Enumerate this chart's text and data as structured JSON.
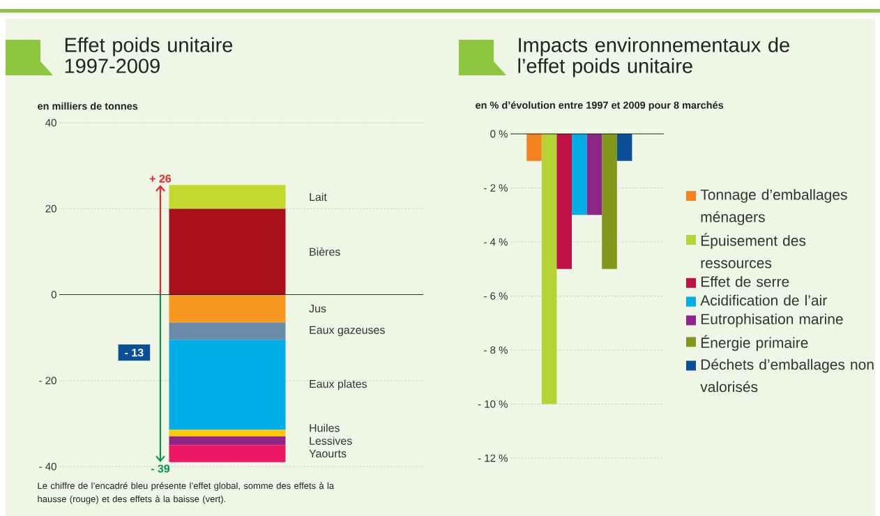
{
  "chart_data": [
    {
      "type": "bar",
      "title": "Effet poids unitaire 1997-2009",
      "ylabel": "en milliers de tonnes",
      "categories": [
        null
      ],
      "stacked": true,
      "legend": false,
      "grid": "y",
      "ylim": [
        -40,
        40
      ],
      "yticks": [
        40,
        20,
        0,
        {
          "value": -20,
          "label": "- 20"
        },
        {
          "value": -40,
          "label": "- 40"
        }
      ],
      "series": [
        {
          "name": "Bières",
          "color": "#a8101b",
          "values": [
            20
          ]
        },
        {
          "name": "Lait",
          "color": "#c2d92e",
          "values": [
            5.5
          ]
        },
        {
          "name": "Jus",
          "color": "#f7991f",
          "values": [
            -6.5
          ]
        },
        {
          "name": "Eaux gazeuses",
          "color": "#6a8ba8",
          "values": [
            -4
          ]
        },
        {
          "name": "Eaux plates",
          "color": "#00ade6",
          "values": [
            -21
          ]
        },
        {
          "name": "Huiles",
          "color": "#fdc900",
          "values": [
            -1.5
          ]
        },
        {
          "name": "Lessives",
          "color": "#8e2689",
          "values": [
            -2
          ]
        },
        {
          "name": "Yaourts",
          "color": "#ec1763",
          "values": [
            -4
          ]
        }
      ],
      "annotations": [
        "+ 26",
        "- 39",
        "- 13",
        "Le chiffre de l’encadré bleu présente l’effet global, somme des effets à la hausse (rouge) et des effets à la baisse (vert)."
      ]
    },
    {
      "type": "bar",
      "title": "Impacts environnementaux de l’effet poids unitaire",
      "ylabel": "en % d’évolution entre 1997 et 2009 pour 8 marchés",
      "categories": [
        null
      ],
      "legend": "right",
      "grid": "y",
      "ylim": [
        -12,
        0
      ],
      "yticks": [
        {
          "value": 0,
          "label": "0 %"
        },
        {
          "value": -2,
          "label": "- 2 %"
        },
        {
          "value": -4,
          "label": "- 4 %"
        },
        {
          "value": -6,
          "label": "- 6 %"
        },
        {
          "value": -8,
          "label": "- 8 %"
        },
        {
          "value": -10,
          "label": "- 10 %"
        },
        {
          "value": -12,
          "label": "- 12 %"
        }
      ],
      "series": [
        {
          "name": "Tonnage d’emballages ménagers",
          "color": "#f58220",
          "values": [
            -1
          ]
        },
        {
          "name": "Épuisement des ressources",
          "color": "#b5d334",
          "values": [
            -10
          ]
        },
        {
          "name": "Effet de serre",
          "color": "#c01048",
          "values": [
            -5
          ]
        },
        {
          "name": "Acidification de l’air",
          "color": "#00ade6",
          "values": [
            -3
          ]
        },
        {
          "name": "Eutrophisation marine",
          "color": "#8e2689",
          "values": [
            -3
          ]
        },
        {
          "name": "Énergie primaire",
          "color": "#84961c",
          "values": [
            -5
          ]
        },
        {
          "name": "Déchets d’emballages non valorisés",
          "color": "#0a4f98",
          "values": [
            -1
          ]
        }
      ]
    }
  ]
}
